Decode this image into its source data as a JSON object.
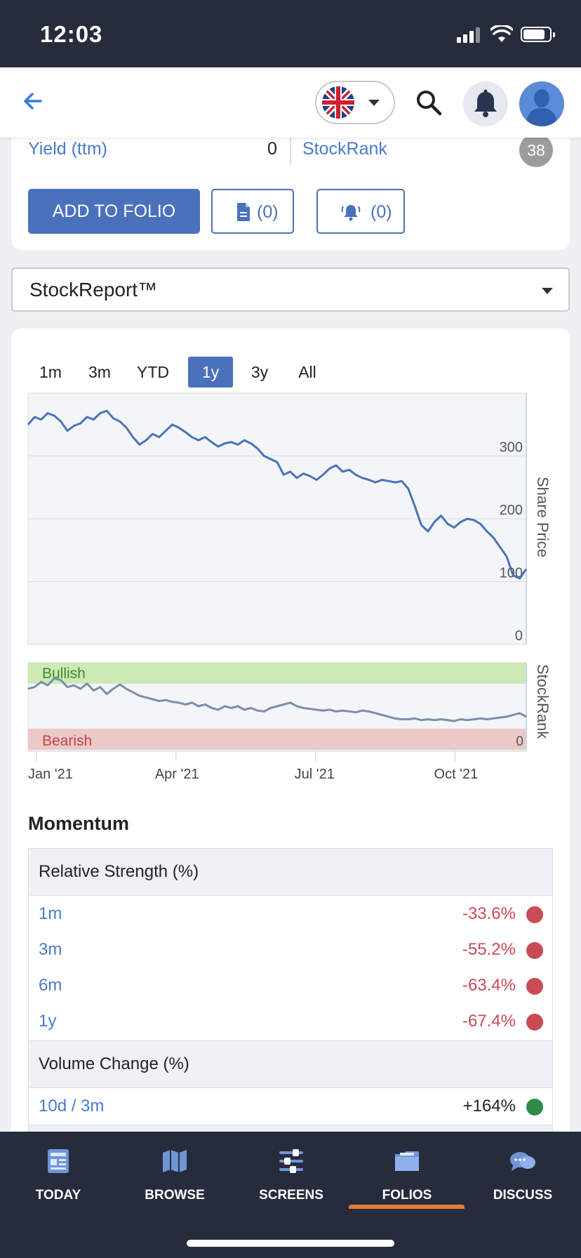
{
  "status": {
    "time": "12:03"
  },
  "header": {
    "flag_name": "uk-flag"
  },
  "summary": {
    "yield_label": "Yield (ttm)",
    "yield_value": "0",
    "stockrank_label": "StockRank",
    "stockrank_value": "38",
    "add_to_folio": "ADD TO FOLIO",
    "notes_count": "(0)",
    "alerts_count": "(0)"
  },
  "report_select": {
    "value": "StockReport™"
  },
  "chart": {
    "tabs": [
      {
        "label": "1m"
      },
      {
        "label": "3m"
      },
      {
        "label": "YTD"
      },
      {
        "label": "1y"
      },
      {
        "label": "3y"
      },
      {
        "label": "All"
      }
    ],
    "active_tab": "1y"
  },
  "chart_data": [
    {
      "type": "line",
      "ylabel": "Share Price",
      "ylim": [
        0,
        400
      ],
      "yticks": [
        "0",
        "100",
        "200",
        "300"
      ],
      "x_ticks": [
        "Jan '21",
        "Apr '21",
        "Jul '21",
        "Oct '21"
      ],
      "series": [
        {
          "values": [
            350,
            362,
            358,
            368,
            364,
            355,
            340,
            348,
            352,
            362,
            358,
            368,
            372,
            360,
            355,
            345,
            330,
            318,
            325,
            335,
            330,
            340,
            350,
            345,
            338,
            330,
            325,
            330,
            322,
            315,
            320,
            322,
            318,
            325,
            320,
            312,
            300,
            295,
            290,
            270,
            275,
            265,
            272,
            268,
            262,
            270,
            280,
            285,
            275,
            278,
            270,
            265,
            262,
            258,
            262,
            260,
            258,
            260,
            248,
            220,
            190,
            180,
            195,
            205,
            192,
            186,
            195,
            200,
            198,
            192,
            180,
            170,
            155,
            140,
            110,
            105,
            120
          ]
        }
      ],
      "color": "#4a72b8"
    },
    {
      "type": "line",
      "ylabel": "StockRank",
      "bands": [
        "Bullish",
        "Bearish"
      ],
      "ytick": "0",
      "ylim": [
        0,
        100
      ],
      "series": [
        {
          "values": [
            70,
            72,
            78,
            74,
            82,
            80,
            72,
            74,
            70,
            76,
            68,
            72,
            64,
            70,
            75,
            70,
            66,
            62,
            60,
            58,
            56,
            57,
            55,
            54,
            52,
            54,
            50,
            52,
            48,
            46,
            50,
            48,
            50,
            46,
            48,
            45,
            44,
            48,
            50,
            52,
            54,
            50,
            48,
            47,
            46,
            45,
            46,
            44,
            45,
            44,
            43,
            45,
            44,
            42,
            40,
            38,
            36,
            35,
            35,
            36,
            34,
            35,
            34,
            35,
            34,
            33,
            35,
            34,
            35,
            36,
            35,
            36,
            37,
            38,
            40,
            42,
            38
          ]
        }
      ],
      "color": "#7b8fa8"
    }
  ],
  "momentum": {
    "title": "Momentum",
    "rs_header": "Relative Strength (%)",
    "rs_rows": [
      {
        "label": "1m",
        "value": "-33.6%"
      },
      {
        "label": "3m",
        "value": "-55.2%"
      },
      {
        "label": "6m",
        "value": "-63.4%"
      },
      {
        "label": "1y",
        "value": "-67.4%"
      }
    ],
    "vol_header": "Volume Change (%)",
    "vol_rows": [
      {
        "label": "10d / 3m",
        "value": "+164%"
      }
    ],
    "negative_color": "#c94b55",
    "positive_color": "#2e8b47"
  },
  "tabbar": {
    "items": [
      {
        "label": "TODAY",
        "icon": "today-icon"
      },
      {
        "label": "BROWSE",
        "icon": "map-icon"
      },
      {
        "label": "SCREENS",
        "icon": "sliders-icon"
      },
      {
        "label": "FOLIOS",
        "icon": "folder-icon"
      },
      {
        "label": "DISCUSS",
        "icon": "chat-icon"
      }
    ],
    "active": "FOLIOS"
  }
}
